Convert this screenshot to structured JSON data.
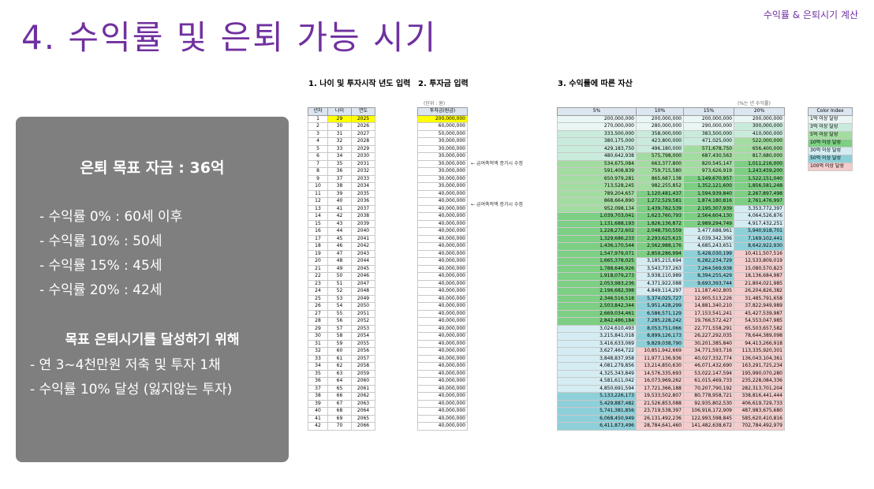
{
  "slide": {
    "title": "4. 수익률 및 은퇴 가능 시기",
    "tag": "수익률 & 은퇴시기 계산"
  },
  "summary": {
    "goal": "은퇴 목표 자금 : 36억",
    "rates": [
      "- 수익률    0% : 60세 이후",
      "- 수익률 10% : 50세",
      "- 수익률 15% : 45세",
      "- 수익률 20% : 42세"
    ],
    "plan_heading": "목표 은퇴시기를 달성하기 위해",
    "plan_items": [
      "- 연 3~4천만원 저축 및 투자 1채",
      "- 수익률 10% 달성 (잃지않는 투자)"
    ]
  },
  "sections": {
    "s1": "1. 나이 및 투자시작 년도 입력",
    "s2": "2. 투자금 입력",
    "s3": "3. 수익률에 따른 자산"
  },
  "notes": {
    "unit": "(단위 : 원)",
    "rate_unit": "(%는 년 수익률)"
  },
  "annotations": [
    "← 급여축적액 증가시 수정",
    "← 급여축적액 증가시 수정"
  ],
  "colors": {
    "title": "#7030a0",
    "panel": "#7f7f7f",
    "header": "#dce6f1",
    "highlight": "#ffff00",
    "c_1": "#eaf6f4",
    "c_3": "#c9ebdc",
    "c_5": "#a3dca0",
    "c_10": "#7dcf83",
    "c_30": "#d4ecf2",
    "c_50": "#8ed0d9",
    "c_100": "#f4cccc",
    "c_0": "#ffffff"
  },
  "age_table": {
    "headers": [
      "년차",
      "나이",
      "연도"
    ],
    "rows": [
      [
        "1",
        "29",
        "2025"
      ],
      [
        "2",
        "30",
        "2026"
      ],
      [
        "3",
        "31",
        "2027"
      ],
      [
        "4",
        "32",
        "2028"
      ],
      [
        "5",
        "33",
        "2029"
      ],
      [
        "6",
        "34",
        "2030"
      ],
      [
        "7",
        "35",
        "2031"
      ],
      [
        "8",
        "36",
        "2032"
      ],
      [
        "9",
        "37",
        "2033"
      ],
      [
        "10",
        "38",
        "2034"
      ],
      [
        "11",
        "39",
        "2035"
      ],
      [
        "12",
        "40",
        "2036"
      ],
      [
        "13",
        "41",
        "2037"
      ],
      [
        "14",
        "42",
        "2038"
      ],
      [
        "15",
        "43",
        "2039"
      ],
      [
        "16",
        "44",
        "2040"
      ],
      [
        "17",
        "45",
        "2041"
      ],
      [
        "18",
        "46",
        "2042"
      ],
      [
        "19",
        "47",
        "2043"
      ],
      [
        "20",
        "48",
        "2044"
      ],
      [
        "21",
        "49",
        "2045"
      ],
      [
        "22",
        "50",
        "2046"
      ],
      [
        "23",
        "51",
        "2047"
      ],
      [
        "24",
        "52",
        "2048"
      ],
      [
        "25",
        "53",
        "2049"
      ],
      [
        "26",
        "54",
        "2050"
      ],
      [
        "27",
        "55",
        "2051"
      ],
      [
        "28",
        "56",
        "2052"
      ],
      [
        "29",
        "57",
        "2053"
      ],
      [
        "30",
        "58",
        "2054"
      ],
      [
        "31",
        "59",
        "2055"
      ],
      [
        "32",
        "60",
        "2056"
      ],
      [
        "33",
        "61",
        "2057"
      ],
      [
        "34",
        "62",
        "2058"
      ],
      [
        "35",
        "63",
        "2059"
      ],
      [
        "36",
        "64",
        "2060"
      ],
      [
        "37",
        "65",
        "2061"
      ],
      [
        "38",
        "66",
        "2062"
      ],
      [
        "39",
        "67",
        "2063"
      ],
      [
        "40",
        "68",
        "2064"
      ],
      [
        "41",
        "69",
        "2065"
      ],
      [
        "42",
        "70",
        "2066"
      ]
    ]
  },
  "invest_table": {
    "header": "투자금(원금)",
    "rows": [
      "200,000,000",
      "60,000,000",
      "50,000,000",
      "30,000,000",
      "30,000,000",
      "30,000,000",
      "30,000,000",
      "30,000,000",
      "30,000,000",
      "30,000,000",
      "40,000,000",
      "40,000,000",
      "40,000,000",
      "40,000,000",
      "40,000,000",
      "40,000,000",
      "40,000,000",
      "40,000,000",
      "40,000,000",
      "40,000,000",
      "40,000,000",
      "40,000,000",
      "40,000,000",
      "40,000,000",
      "40,000,000",
      "40,000,000",
      "40,000,000",
      "40,000,000",
      "40,000,000",
      "40,000,000",
      "40,000,000",
      "40,000,000",
      "40,000,000",
      "40,000,000",
      "40,000,000",
      "40,000,000",
      "40,000,000",
      "40,000,000",
      "40,000,000",
      "40,000,000",
      "40,000,000",
      "40,000,000"
    ]
  },
  "returns_table": {
    "headers": [
      "5%",
      "10%",
      "15%",
      "20%"
    ],
    "rows": [
      [
        "200,000,000",
        "200,000,000",
        "200,000,000",
        "200,000,000"
      ],
      [
        "270,000,000",
        "280,000,000",
        "290,000,000",
        "300,000,000"
      ],
      [
        "333,500,000",
        "358,000,000",
        "383,500,000",
        "410,000,000"
      ],
      [
        "380,175,000",
        "423,800,000",
        "471,025,000",
        "522,000,000"
      ],
      [
        "429,183,750",
        "496,180,000",
        "571,678,750",
        "656,400,000"
      ],
      [
        "480,642,938",
        "575,798,000",
        "687,430,563",
        "817,680,000"
      ],
      [
        "534,675,084",
        "663,377,800",
        "820,545,147",
        "1,011,216,000"
      ],
      [
        "591,408,839",
        "759,715,580",
        "973,626,919",
        "1,243,459,200"
      ],
      [
        "650,979,281",
        "865,687,138",
        "1,149,670,957",
        "1,522,151,040"
      ],
      [
        "713,528,245",
        "982,255,852",
        "1,352,121,600",
        "1,856,581,248"
      ],
      [
        "789,204,657",
        "1,120,481,437",
        "1,594,939,840",
        "2,267,897,498"
      ],
      [
        "868,664,890",
        "1,272,529,581",
        "1,874,180,816",
        "2,761,476,997"
      ],
      [
        "952,098,134",
        "1,439,782,539",
        "2,195,307,939",
        "3,353,772,397"
      ],
      [
        "1,039,703,041",
        "1,623,760,793",
        "2,564,604,130",
        "4,064,526,876"
      ],
      [
        "1,131,688,193",
        "1,826,136,872",
        "2,989,294,749",
        "4,917,432,251"
      ],
      [
        "1,228,272,602",
        "2,048,750,559",
        "3,477,688,961",
        "5,940,918,701"
      ],
      [
        "1,329,686,233",
        "2,293,625,615",
        "4,039,342,306",
        "7,169,102,441"
      ],
      [
        "1,436,170,544",
        "2,562,988,176",
        "4,685,243,651",
        "8,642,922,930"
      ],
      [
        "1,547,979,071",
        "2,859,286,994",
        "5,428,030,199",
        "10,411,507,516"
      ],
      [
        "1,665,378,025",
        "3,185,215,694",
        "6,282,234,729",
        "12,533,809,019"
      ],
      [
        "1,788,646,926",
        "3,543,737,263",
        "7,264,569,938",
        "15,080,570,823"
      ],
      [
        "1,918,079,273",
        "3,938,110,989",
        "8,394,255,429",
        "18,136,684,987"
      ],
      [
        "2,053,983,236",
        "4,371,922,088",
        "9,693,393,744",
        "21,804,021,985"
      ],
      [
        "2,196,682,398",
        "4,849,114,297",
        "11,187,402,805",
        "26,204,826,382"
      ],
      [
        "2,346,516,518",
        "5,374,025,727",
        "12,905,513,226",
        "31,485,791,658"
      ],
      [
        "2,503,842,344",
        "5,951,428,299",
        "14,881,340,210",
        "37,822,949,989"
      ],
      [
        "2,669,034,461",
        "6,586,571,129",
        "17,153,541,241",
        "45,427,539,987"
      ],
      [
        "2,842,486,184",
        "7,285,228,242",
        "19,766,572,427",
        "54,553,047,985"
      ],
      [
        "3,024,610,493",
        "8,053,751,066",
        "22,771,558,291",
        "65,503,657,582"
      ],
      [
        "3,215,841,018",
        "8,899,126,173",
        "26,227,292,035",
        "78,644,389,098"
      ],
      [
        "3,416,633,069",
        "9,829,038,790",
        "30,201,385,840",
        "94,413,266,918"
      ],
      [
        "3,627,464,722",
        "10,851,942,669",
        "34,771,593,716",
        "113,335,920,301"
      ],
      [
        "3,848,837,958",
        "11,977,136,936",
        "40,027,332,774",
        "136,043,104,361"
      ],
      [
        "4,081,279,856",
        "13,214,850,630",
        "46,071,432,690",
        "163,291,725,234"
      ],
      [
        "4,325,343,849",
        "14,576,335,693",
        "53,022,147,594",
        "195,990,070,280"
      ],
      [
        "4,581,611,042",
        "16,073,969,262",
        "61,015,469,733",
        "235,228,084,336"
      ],
      [
        "4,850,691,594",
        "17,721,366,188",
        "70,207,790,192",
        "282,313,701,204"
      ],
      [
        "5,133,226,173",
        "19,533,502,807",
        "80,778,958,721",
        "338,816,441,444"
      ],
      [
        "5,429,887,482",
        "21,526,853,088",
        "92,935,802,530",
        "406,619,729,733"
      ],
      [
        "5,741,381,856",
        "23,719,538,397",
        "106,916,172,909",
        "487,983,675,680"
      ],
      [
        "6,068,450,949",
        "26,131,492,236",
        "122,993,598,845",
        "585,620,410,816"
      ],
      [
        "6,411,873,496",
        "28,784,641,460",
        "141,482,638,672",
        "702,784,492,979"
      ]
    ]
  },
  "color_index": {
    "header": "Color Index",
    "items": [
      {
        "label": "1억 이상 달성",
        "color": "#eaf6f4"
      },
      {
        "label": "3억 이상 달성",
        "color": "#c9ebdc"
      },
      {
        "label": "5억 이상 달성",
        "color": "#a3dca0"
      },
      {
        "label": "10억 이상 달성",
        "color": "#7dcf83"
      },
      {
        "label": "30억 이상 달성",
        "color": "#d4ecf2"
      },
      {
        "label": "50억 이상 달성",
        "color": "#8ed0d9"
      },
      {
        "label": "100억 이상 달성",
        "color": "#f4cccc"
      }
    ]
  }
}
